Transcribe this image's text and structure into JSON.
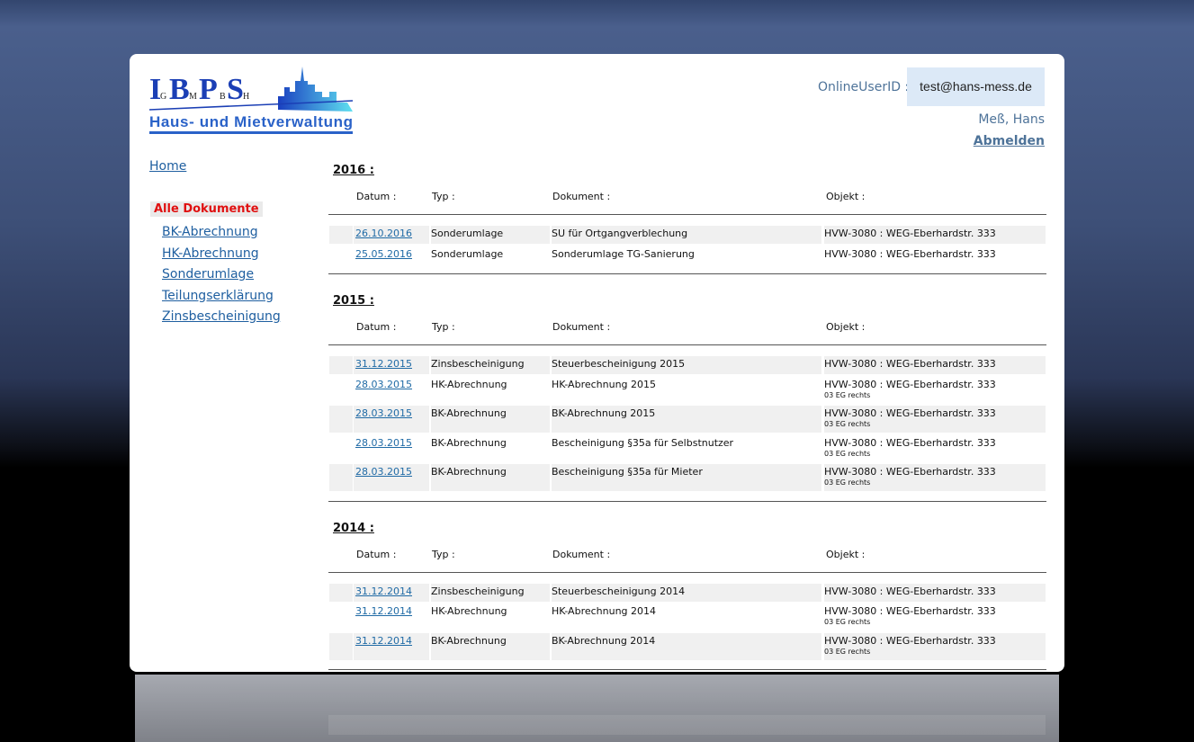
{
  "logo": {
    "letters": "I.B.P.S.",
    "small": "GmbH",
    "tagline": "Haus- und Mietverwaltung"
  },
  "header": {
    "user_label": "OnlineUserID :",
    "user_id": "test@hans-mess.de",
    "user_name": "Meß, Hans",
    "logout": "Abmelden"
  },
  "nav": {
    "home": "Home",
    "active": "Alle Dokumente",
    "items": [
      "BK-Abrechnung",
      "HK-Abrechnung",
      "Sonderumlage",
      "Teilungserklärung",
      "Zinsbescheinigung"
    ]
  },
  "columns": {
    "datum": "Datum :",
    "typ": "Typ :",
    "dokument": "Dokument :",
    "objekt": "Objekt :"
  },
  "groups": [
    {
      "year": "2016 :",
      "rows": [
        {
          "datum": "26.10.2016",
          "typ": "Sonderumlage",
          "dokument": "SU für Ortgangverblechung",
          "objekt": "HVW-3080 : WEG-Eberhardstr. 333",
          "sub": ""
        },
        {
          "datum": "25.05.2016",
          "typ": "Sonderumlage",
          "dokument": "Sonderumlage TG-Sanierung",
          "objekt": "HVW-3080 : WEG-Eberhardstr. 333",
          "sub": ""
        }
      ]
    },
    {
      "year": "2015 :",
      "rows": [
        {
          "datum": "31.12.2015",
          "typ": "Zinsbescheinigung",
          "dokument": "Steuerbescheinigung 2015",
          "objekt": "HVW-3080 : WEG-Eberhardstr. 333",
          "sub": ""
        },
        {
          "datum": "28.03.2015",
          "typ": "HK-Abrechnung",
          "dokument": "HK-Abrechnung 2015",
          "objekt": "HVW-3080 : WEG-Eberhardstr. 333",
          "sub": "03 EG rechts"
        },
        {
          "datum": "28.03.2015",
          "typ": "BK-Abrechnung",
          "dokument": "BK-Abrechnung 2015",
          "objekt": "HVW-3080 : WEG-Eberhardstr. 333",
          "sub": "03 EG rechts"
        },
        {
          "datum": "28.03.2015",
          "typ": "BK-Abrechnung",
          "dokument": "Bescheinigung §35a für Selbstnutzer",
          "objekt": "HVW-3080 : WEG-Eberhardstr. 333",
          "sub": "03 EG rechts"
        },
        {
          "datum": "28.03.2015",
          "typ": "BK-Abrechnung",
          "dokument": "Bescheinigung §35a für Mieter",
          "objekt": "HVW-3080 : WEG-Eberhardstr. 333",
          "sub": "03 EG rechts"
        }
      ]
    },
    {
      "year": "2014 :",
      "rows": [
        {
          "datum": "31.12.2014",
          "typ": "Zinsbescheinigung",
          "dokument": "Steuerbescheinigung 2014",
          "objekt": "HVW-3080 : WEG-Eberhardstr. 333",
          "sub": ""
        },
        {
          "datum": "31.12.2014",
          "typ": "HK-Abrechnung",
          "dokument": "HK-Abrechnung 2014",
          "objekt": "HVW-3080 : WEG-Eberhardstr. 333",
          "sub": "03 EG rechts"
        },
        {
          "datum": "31.12.2014",
          "typ": "BK-Abrechnung",
          "dokument": "BK-Abrechnung 2014",
          "objekt": "HVW-3080 : WEG-Eberhardstr. 333",
          "sub": "03 EG rechts"
        }
      ]
    }
  ]
}
